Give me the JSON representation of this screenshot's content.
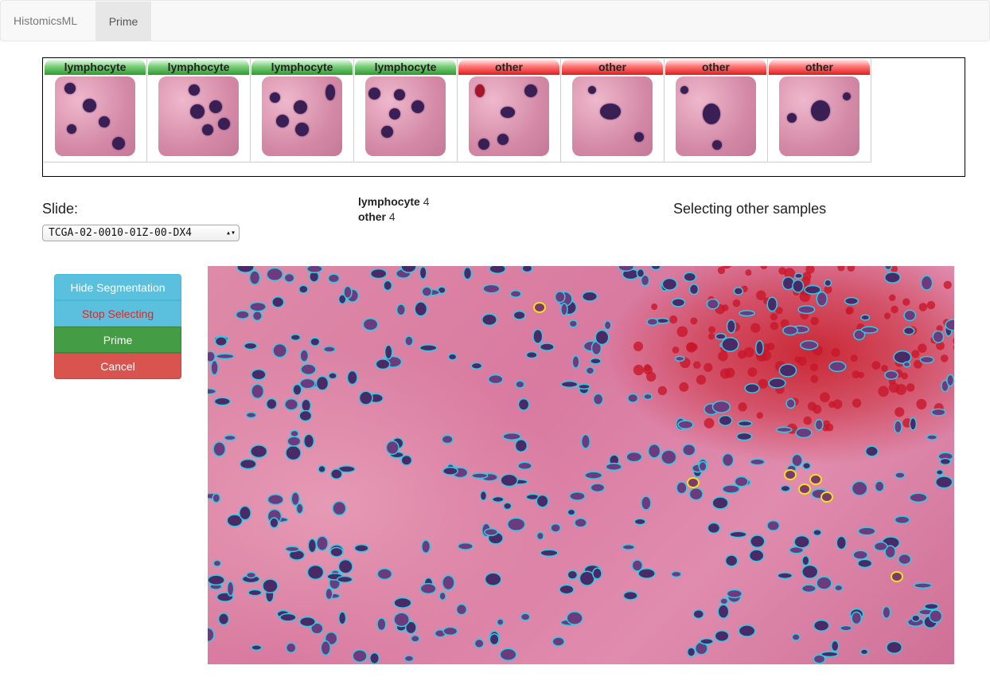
{
  "navbar": {
    "brand": "HistomicsML",
    "active_tab": "Prime"
  },
  "thumbnails": [
    {
      "label": "lymphocyte",
      "class": "lymphocyte"
    },
    {
      "label": "lymphocyte",
      "class": "lymphocyte"
    },
    {
      "label": "lymphocyte",
      "class": "lymphocyte"
    },
    {
      "label": "lymphocyte",
      "class": "lymphocyte"
    },
    {
      "label": "other",
      "class": "other"
    },
    {
      "label": "other",
      "class": "other"
    },
    {
      "label": "other",
      "class": "other"
    },
    {
      "label": "other",
      "class": "other"
    }
  ],
  "slide": {
    "label": "Slide:",
    "selected": "TCGA-02-0010-01Z-00-DX4"
  },
  "counts": [
    {
      "name": "lymphocyte",
      "value": "4"
    },
    {
      "name": "other",
      "value": "4"
    }
  ],
  "status": "Selecting other samples",
  "buttons": {
    "hide_segmentation": "Hide Segmentation",
    "stop_selecting": "Stop Selecting",
    "prime": "Prime",
    "cancel": "Cancel"
  },
  "colors": {
    "lymphocyte_label": "#2e9b2e",
    "other_label": "#e01d1d",
    "segmentation_outline": "#2ecbe6",
    "selected_outline": "#f2e21a"
  }
}
